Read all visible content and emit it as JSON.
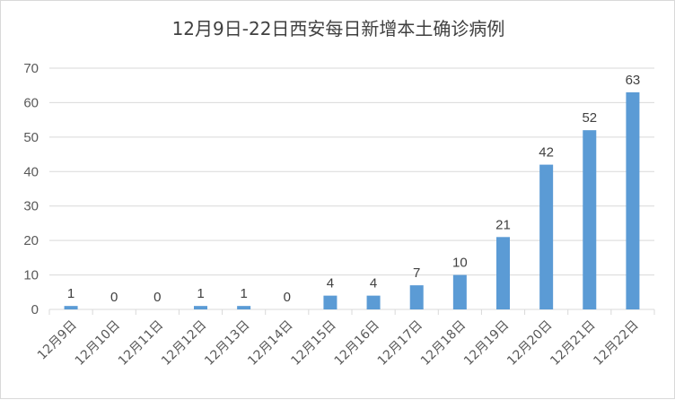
{
  "chart_data": {
    "type": "bar",
    "title": "12月9日-22日西安每日新增本土确诊病例",
    "categories": [
      "12月9日",
      "12月10日",
      "12月11日",
      "12月12日",
      "12月13日",
      "12月14日",
      "12月15日",
      "12月16日",
      "12月17日",
      "12月18日",
      "12月19日",
      "12月20日",
      "12月21日",
      "12月22日"
    ],
    "values": [
      1,
      0,
      0,
      1,
      1,
      0,
      4,
      4,
      7,
      10,
      21,
      42,
      52,
      63
    ],
    "ylim": [
      0,
      70
    ],
    "yticks": [
      0,
      10,
      20,
      30,
      40,
      50,
      60,
      70
    ],
    "grid": true,
    "legend": "none",
    "bar_color": "#5b9bd5",
    "grid_color": "#d9d9d9",
    "xlabel": "",
    "ylabel": ""
  }
}
